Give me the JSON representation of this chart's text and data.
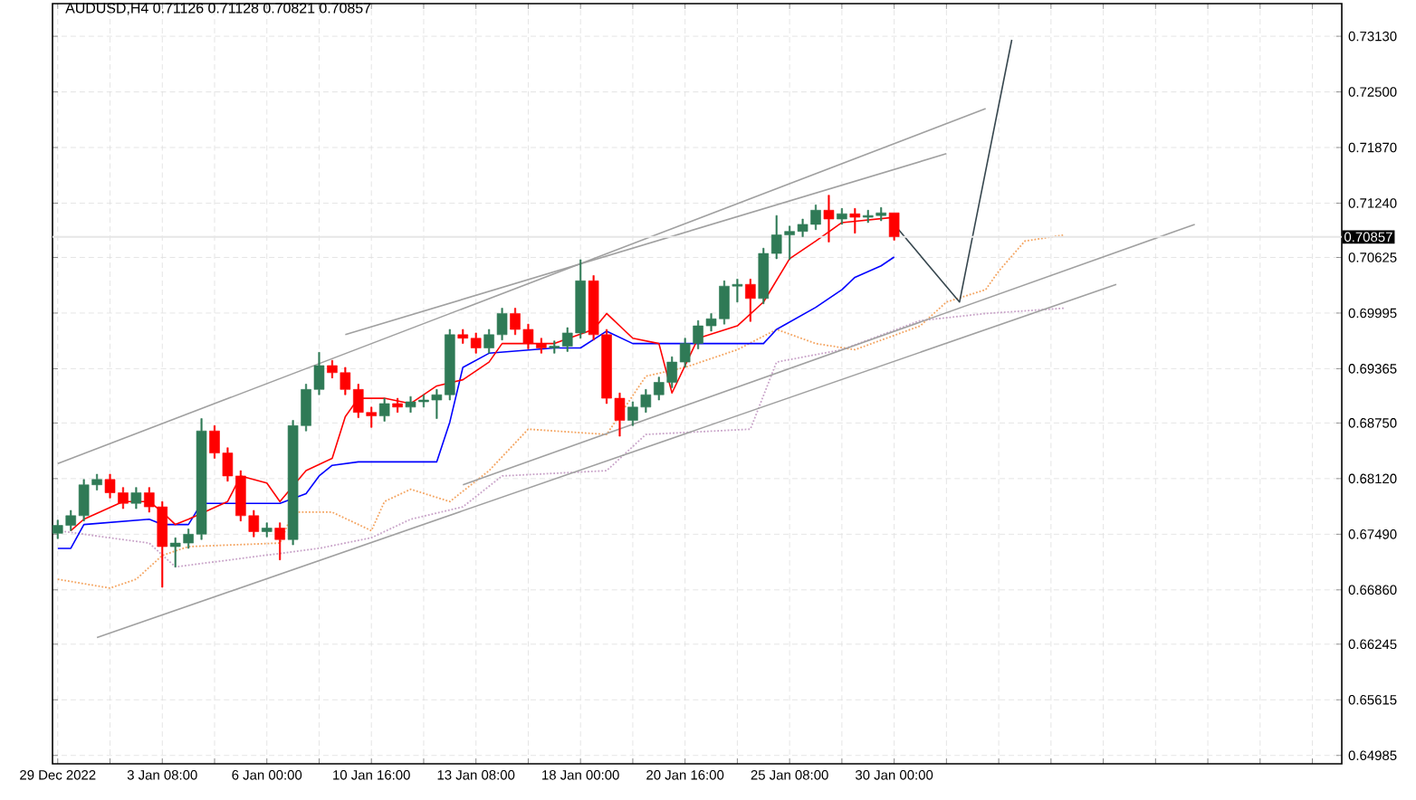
{
  "chart_data": {
    "type": "candlestick",
    "title": "AUDUSD,H4  0.71126 0.71128 0.70821 0.70857",
    "categories": [
      "29 Dec 2022",
      null,
      null,
      null,
      null,
      null,
      null,
      null,
      "3 Jan 08:00",
      null,
      null,
      null,
      null,
      null,
      null,
      null,
      "6 Jan 00:00",
      null,
      null,
      null,
      null,
      null,
      null,
      null,
      "10 Jan 16:00",
      null,
      null,
      null,
      null,
      null,
      null,
      null,
      "13 Jan 08:00",
      null,
      null,
      null,
      null,
      null,
      null,
      null,
      "18 Jan 00:00",
      null,
      null,
      null,
      null,
      null,
      null,
      null,
      "20 Jan 16:00",
      null,
      null,
      null,
      null,
      null,
      null,
      null,
      "25 Jan 08:00",
      null,
      null,
      null,
      null,
      null,
      null,
      null,
      "30 Jan 00:00",
      null,
      null,
      null,
      null,
      null,
      null,
      null,
      null,
      null,
      null,
      null,
      null,
      null,
      null,
      null,
      null,
      null,
      null,
      null,
      null,
      null,
      null,
      null,
      null,
      null,
      null,
      null,
      null,
      null,
      null,
      null,
      null,
      null,
      null
    ],
    "ohlc": [
      [
        0.675,
        0.6765,
        0.6744,
        0.6759
      ],
      [
        0.6759,
        0.6776,
        0.6753,
        0.677
      ],
      [
        0.677,
        0.6811,
        0.6764,
        0.6805
      ],
      [
        0.6805,
        0.6817,
        0.6799,
        0.6811
      ],
      [
        0.6811,
        0.6817,
        0.679,
        0.6796
      ],
      [
        0.6796,
        0.6802,
        0.6778,
        0.6784
      ],
      [
        0.6784,
        0.6802,
        0.6778,
        0.6796
      ],
      [
        0.6796,
        0.6802,
        0.6774,
        0.678
      ],
      [
        0.678,
        0.6786,
        0.6689,
        0.6735
      ],
      [
        0.6735,
        0.6745,
        0.6712,
        0.6739
      ],
      [
        0.6739,
        0.6755,
        0.6733,
        0.6749
      ],
      [
        0.6749,
        0.688,
        0.6743,
        0.6866
      ],
      [
        0.6866,
        0.6872,
        0.6835,
        0.6841
      ],
      [
        0.6841,
        0.6847,
        0.6809,
        0.6815
      ],
      [
        0.6815,
        0.6821,
        0.6764,
        0.677
      ],
      [
        0.677,
        0.6776,
        0.6746,
        0.6752
      ],
      [
        0.6752,
        0.6762,
        0.6746,
        0.6756
      ],
      [
        0.6756,
        0.6762,
        0.672,
        0.6743
      ],
      [
        0.6743,
        0.6878,
        0.6737,
        0.6872
      ],
      [
        0.6872,
        0.6919,
        0.6866,
        0.6913
      ],
      [
        0.6913,
        0.6955,
        0.6907,
        0.694
      ],
      [
        0.694,
        0.6946,
        0.6926,
        0.6932
      ],
      [
        0.6932,
        0.6938,
        0.6907,
        0.6913
      ],
      [
        0.6913,
        0.6919,
        0.6881,
        0.6887
      ],
      [
        0.6887,
        0.6893,
        0.687,
        0.6883
      ],
      [
        0.6883,
        0.6903,
        0.6877,
        0.6897
      ],
      [
        0.6897,
        0.6903,
        0.6887,
        0.6893
      ],
      [
        0.6893,
        0.6905,
        0.6887,
        0.6899
      ],
      [
        0.6899,
        0.6907,
        0.6893,
        0.6901
      ],
      [
        0.6901,
        0.6913,
        0.688,
        0.6907
      ],
      [
        0.6907,
        0.6981,
        0.6901,
        0.6975
      ],
      [
        0.6975,
        0.6981,
        0.6965,
        0.6971
      ],
      [
        0.6971,
        0.6977,
        0.6954,
        0.696
      ],
      [
        0.696,
        0.6981,
        0.6954,
        0.6975
      ],
      [
        0.6975,
        0.7005,
        0.6969,
        0.6999
      ],
      [
        0.6999,
        0.7005,
        0.6975,
        0.6981
      ],
      [
        0.6981,
        0.6987,
        0.6959,
        0.6965
      ],
      [
        0.6965,
        0.6971,
        0.6954,
        0.696
      ],
      [
        0.696,
        0.6968,
        0.6954,
        0.6962
      ],
      [
        0.6962,
        0.6983,
        0.6956,
        0.6977
      ],
      [
        0.6977,
        0.706,
        0.6971,
        0.7036
      ],
      [
        0.7036,
        0.7042,
        0.6969,
        0.6975
      ],
      [
        0.6975,
        0.6981,
        0.6897,
        0.6903
      ],
      [
        0.6903,
        0.6909,
        0.686,
        0.6878
      ],
      [
        0.6878,
        0.6899,
        0.6872,
        0.6893
      ],
      [
        0.6893,
        0.6913,
        0.6887,
        0.6907
      ],
      [
        0.6907,
        0.6927,
        0.6901,
        0.6921
      ],
      [
        0.6921,
        0.695,
        0.6915,
        0.6944
      ],
      [
        0.6944,
        0.6971,
        0.6938,
        0.6965
      ],
      [
        0.6965,
        0.6991,
        0.6959,
        0.6985
      ],
      [
        0.6985,
        0.6999,
        0.6979,
        0.6993
      ],
      [
        0.6993,
        0.7036,
        0.6987,
        0.703
      ],
      [
        0.703,
        0.7038,
        0.7012,
        0.7032
      ],
      [
        0.7032,
        0.7038,
        0.699,
        0.7016
      ],
      [
        0.7016,
        0.7073,
        0.701,
        0.7067
      ],
      [
        0.7067,
        0.711,
        0.7061,
        0.7088
      ],
      [
        0.7088,
        0.7098,
        0.706,
        0.7092
      ],
      [
        0.7092,
        0.7106,
        0.7086,
        0.71
      ],
      [
        0.71,
        0.7122,
        0.7094,
        0.7116
      ],
      [
        0.7116,
        0.7133,
        0.708,
        0.7106
      ],
      [
        0.7106,
        0.7118,
        0.71,
        0.7112
      ],
      [
        0.7112,
        0.7118,
        0.709,
        0.7108
      ],
      [
        0.7108,
        0.7116,
        0.7102,
        0.711
      ],
      [
        0.711,
        0.7119,
        0.7104,
        0.7113
      ],
      [
        0.7113,
        0.7113,
        0.7082,
        0.7086
      ],
      null,
      null,
      null,
      null,
      null,
      null,
      null,
      null,
      null,
      null,
      null,
      null,
      null,
      null,
      null,
      null,
      null,
      null,
      null,
      null,
      null,
      null,
      null,
      null,
      null,
      null,
      null,
      null,
      null,
      null,
      null,
      null,
      null,
      null
    ],
    "colors": [
      "#2f7a56",
      "#2f7a56",
      "#2f7a56",
      "#2f7a56",
      "#ff0000",
      "#ff0000",
      "#2f7a56",
      "#ff0000",
      "#ff0000",
      "#2f7a56",
      "#2f7a56",
      "#2f7a56",
      "#ff0000",
      "#ff0000",
      "#ff0000",
      "#ff0000",
      "#2f7a56",
      "#ff0000",
      "#2f7a56",
      "#2f7a56",
      "#2f7a56",
      "#ff0000",
      "#ff0000",
      "#ff0000",
      "#ff0000",
      "#2f7a56",
      "#ff0000",
      "#2f7a56",
      "#2f7a56",
      "#2f7a56",
      "#2f7a56",
      "#ff0000",
      "#ff0000",
      "#2f7a56",
      "#2f7a56",
      "#ff0000",
      "#ff0000",
      "#ff0000",
      "#2f7a56",
      "#2f7a56",
      "#2f7a56",
      "#ff0000",
      "#ff0000",
      "#ff0000",
      "#2f7a56",
      "#2f7a56",
      "#2f7a56",
      "#2f7a56",
      "#2f7a56",
      "#2f7a56",
      "#2f7a56",
      "#2f7a56",
      "#2f7a56",
      "#ff0000",
      "#2f7a56",
      "#2f7a56",
      "#2f7a56",
      "#2f7a56",
      "#2f7a56",
      "#ff0000",
      "#2f7a56",
      "#ff0000",
      "#2f7a56",
      "#2f7a56",
      "#ff0000",
      null,
      null,
      null,
      null,
      null,
      null,
      null,
      null,
      null,
      null,
      null,
      null,
      null,
      null,
      null,
      null,
      null,
      null,
      null,
      null,
      null,
      null,
      null,
      null,
      null,
      null,
      null,
      null,
      null,
      null,
      null,
      null,
      null,
      null
    ],
    "series": [
      {
        "type": "line",
        "color": "#f4a460",
        "line_style": "dotted",
        "values": [
          0.6698,
          null,
          null,
          null,
          0.6688,
          null,
          0.6698,
          null,
          0.6725,
          null,
          0.6735,
          null,
          null,
          null,
          null,
          null,
          null,
          0.6739,
          0.6774,
          null,
          null,
          0.6774,
          null,
          null,
          0.6753,
          0.6786,
          null,
          0.68,
          null,
          null,
          0.6786,
          null,
          null,
          0.6821,
          null,
          null,
          0.6868,
          null,
          null,
          null,
          null,
          null,
          0.6862,
          null,
          null,
          0.6928,
          null,
          null,
          0.6938,
          null,
          null,
          null,
          0.6958,
          null,
          null,
          0.6981,
          null,
          null,
          0.6965,
          null,
          null,
          0.6958,
          null,
          null,
          null,
          null,
          0.6985,
          null,
          0.7012,
          null,
          null,
          0.7026,
          0.7047,
          null,
          0.7081,
          null,
          null,
          0.7088,
          null,
          null,
          null,
          null,
          null,
          null,
          null,
          null,
          null,
          null,
          null,
          null,
          null,
          null,
          null,
          null,
          null,
          null,
          null,
          null,
          null
        ]
      },
      {
        "type": "line",
        "color": "#c8a2c8",
        "line_style": "dotted",
        "values": [
          0.6753,
          null,
          null,
          null,
          0.6745,
          null,
          null,
          0.6739,
          null,
          0.6712,
          null,
          null,
          null,
          null,
          null,
          null,
          null,
          null,
          null,
          null,
          0.6733,
          null,
          null,
          null,
          0.6745,
          null,
          null,
          0.6766,
          null,
          null,
          null,
          0.678,
          null,
          null,
          0.6815,
          null,
          null,
          null,
          null,
          null,
          null,
          null,
          0.6821,
          null,
          null,
          0.6862,
          null,
          null,
          null,
          null,
          null,
          null,
          null,
          0.6868,
          null,
          0.6944,
          null,
          null,
          null,
          null,
          0.6958,
          null,
          null,
          null,
          null,
          null,
          0.6991,
          null,
          null,
          null,
          null,
          0.6999,
          null,
          null,
          null,
          null,
          null,
          0.7005,
          null,
          null,
          null,
          null,
          null,
          null,
          null,
          null,
          null,
          null,
          null,
          null,
          null,
          null,
          null,
          null,
          null,
          null,
          null,
          null,
          null
        ]
      },
      {
        "type": "line",
        "color": "#0000ff",
        "values": [
          0.6733,
          0.6733,
          0.676,
          null,
          null,
          null,
          null,
          0.6766,
          0.676,
          null,
          0.676,
          0.6784,
          null,
          null,
          null,
          null,
          null,
          0.6784,
          null,
          0.6795,
          0.6815,
          0.6827,
          null,
          0.6831,
          null,
          null,
          null,
          null,
          null,
          0.6831,
          0.6876,
          0.6938,
          null,
          0.6954,
          null,
          null,
          null,
          null,
          0.696,
          null,
          0.696,
          null,
          0.6979,
          null,
          0.6965,
          null,
          null,
          null,
          null,
          null,
          null,
          null,
          null,
          null,
          0.6965,
          0.6981,
          null,
          null,
          0.7006,
          null,
          0.7026,
          0.704,
          null,
          0.7053,
          0.7063,
          null,
          null,
          null,
          null,
          null,
          null,
          null,
          null,
          null,
          null,
          null,
          null,
          null,
          null,
          null,
          null,
          null,
          null,
          null,
          null,
          null,
          null,
          null,
          null,
          null,
          null,
          null,
          null,
          null,
          null,
          null,
          null,
          null,
          null
        ]
      },
      {
        "type": "line",
        "color": "#ff0000",
        "values": [
          null,
          0.6753,
          0.6766,
          null,
          null,
          0.6786,
          null,
          0.6786,
          0.6774,
          0.676,
          0.6766,
          null,
          null,
          0.6786,
          0.6815,
          null,
          0.6807,
          0.6786,
          null,
          0.6821,
          null,
          0.6835,
          0.6882,
          0.6903,
          null,
          0.6903,
          null,
          0.6897,
          null,
          0.6917,
          null,
          0.6924,
          null,
          0.6944,
          0.6965,
          null,
          null,
          null,
          0.6965,
          null,
          null,
          0.6981,
          0.6999,
          null,
          0.6971,
          null,
          0.6965,
          0.6909,
          null,
          0.6971,
          null,
          null,
          0.6985,
          null,
          0.7012,
          null,
          0.7061,
          null,
          0.7081,
          null,
          0.7102,
          null,
          null,
          null,
          0.7108,
          null,
          null,
          null,
          null,
          null,
          null,
          null,
          null,
          null,
          null,
          null,
          null,
          null,
          null,
          null,
          null,
          null,
          null,
          null,
          null,
          null,
          null,
          null,
          null,
          null,
          null,
          null,
          null,
          null,
          null,
          null,
          null,
          null,
          null
        ]
      },
      {
        "type": "line",
        "color": "#a0a0a0",
        "values": [
          0.6829,
          null,
          null,
          null,
          null,
          null,
          null,
          null,
          null,
          null,
          null,
          null,
          null,
          null,
          null,
          null,
          null,
          null,
          null,
          null,
          null,
          null,
          null,
          null,
          null,
          null,
          null,
          null,
          null,
          null,
          null,
          null,
          null,
          null,
          null,
          null,
          null,
          null,
          null,
          null,
          null,
          null,
          null,
          null,
          null,
          null,
          null,
          null,
          null,
          null,
          null,
          null,
          null,
          null,
          null,
          null,
          null,
          null,
          null,
          null,
          null,
          null,
          null,
          null,
          null,
          null,
          null,
          null,
          null,
          null,
          null,
          0.7231,
          null,
          null,
          null,
          null,
          null,
          null,
          null,
          null,
          null,
          null,
          null,
          null,
          null,
          null,
          null,
          null,
          null,
          null,
          null,
          null,
          null,
          null,
          null,
          null,
          null,
          null,
          null
        ]
      },
      {
        "type": "line",
        "color": "#a0a0a0",
        "values": [
          null,
          null,
          null,
          null,
          null,
          null,
          null,
          null,
          null,
          null,
          null,
          null,
          null,
          null,
          null,
          null,
          null,
          null,
          null,
          null,
          null,
          null,
          0.6975,
          null,
          null,
          null,
          null,
          null,
          null,
          null,
          null,
          null,
          null,
          null,
          null,
          null,
          null,
          null,
          null,
          null,
          null,
          null,
          null,
          null,
          null,
          null,
          null,
          null,
          null,
          null,
          null,
          null,
          null,
          null,
          null,
          null,
          null,
          null,
          null,
          null,
          null,
          null,
          null,
          null,
          null,
          null,
          null,
          null,
          0.718,
          null,
          null,
          null,
          null,
          null,
          null,
          null,
          null,
          null,
          null,
          null,
          null,
          null,
          null,
          null,
          null,
          null,
          null,
          null,
          null,
          null,
          null,
          null,
          null,
          null,
          null,
          null,
          null,
          null,
          null
        ]
      },
      {
        "type": "line",
        "color": "#a0a0a0",
        "values": [
          null,
          null,
          null,
          0.6632,
          null,
          null,
          null,
          null,
          null,
          null,
          null,
          null,
          null,
          null,
          null,
          null,
          null,
          null,
          null,
          null,
          null,
          null,
          null,
          null,
          null,
          null,
          null,
          null,
          null,
          null,
          null,
          null,
          null,
          null,
          null,
          null,
          null,
          null,
          null,
          null,
          null,
          null,
          null,
          null,
          null,
          null,
          null,
          null,
          null,
          null,
          null,
          null,
          null,
          null,
          null,
          null,
          null,
          null,
          null,
          null,
          null,
          null,
          null,
          null,
          null,
          null,
          null,
          null,
          null,
          null,
          null,
          null,
          null,
          null,
          null,
          null,
          null,
          null,
          null,
          null,
          null,
          0.7032,
          null,
          null,
          null,
          null,
          null,
          null,
          null,
          null,
          null,
          null,
          null,
          null,
          null,
          null,
          null,
          null,
          null
        ]
      },
      {
        "type": "line",
        "color": "#a0a0a0",
        "values": [
          null,
          null,
          null,
          null,
          null,
          null,
          null,
          null,
          null,
          null,
          null,
          null,
          null,
          null,
          null,
          null,
          null,
          null,
          null,
          null,
          null,
          null,
          null,
          null,
          null,
          null,
          null,
          null,
          null,
          null,
          null,
          0.6805,
          null,
          null,
          null,
          null,
          null,
          null,
          null,
          null,
          null,
          null,
          null,
          null,
          null,
          null,
          null,
          null,
          null,
          null,
          null,
          null,
          null,
          null,
          null,
          null,
          null,
          null,
          null,
          null,
          null,
          null,
          null,
          null,
          null,
          null,
          null,
          null,
          null,
          null,
          null,
          null,
          null,
          null,
          null,
          null,
          null,
          null,
          null,
          null,
          null,
          null,
          null,
          null,
          null,
          null,
          null,
          0.71,
          null,
          null,
          null,
          null,
          null,
          null,
          null,
          null,
          null,
          null,
          null
        ]
      },
      {
        "type": "line",
        "color": "#37474f",
        "values": [
          null,
          null,
          null,
          null,
          null,
          null,
          null,
          null,
          null,
          null,
          null,
          null,
          null,
          null,
          null,
          null,
          null,
          null,
          null,
          null,
          null,
          null,
          null,
          null,
          null,
          null,
          null,
          null,
          null,
          null,
          null,
          null,
          null,
          null,
          null,
          null,
          null,
          null,
          null,
          null,
          null,
          null,
          null,
          null,
          null,
          null,
          null,
          null,
          null,
          null,
          null,
          null,
          null,
          null,
          null,
          null,
          null,
          null,
          null,
          null,
          null,
          null,
          null,
          null,
          0.71,
          null,
          null,
          null,
          null,
          0.7012,
          null,
          null,
          null,
          0.7309,
          null,
          null,
          null,
          null,
          null,
          null,
          null,
          null,
          null,
          null,
          null,
          null,
          null,
          null,
          null,
          null,
          null,
          null,
          null,
          null,
          null,
          null,
          null,
          null,
          null
        ]
      }
    ],
    "ylim": [
      0.6489,
      0.735
    ],
    "yticks": [
      {
        "value": 0.64985,
        "label": "0.64985"
      },
      {
        "value": 0.65615,
        "label": "0.65615"
      },
      {
        "value": 0.66245,
        "label": "0.66245"
      },
      {
        "value": 0.6686,
        "label": "0.66860"
      },
      {
        "value": 0.6749,
        "label": "0.67490"
      },
      {
        "value": 0.6812,
        "label": "0.68120"
      },
      {
        "value": 0.6875,
        "label": "0.68750"
      },
      {
        "value": 0.69365,
        "label": "0.69365"
      },
      {
        "value": 0.69995,
        "label": "0.69995"
      },
      {
        "value": 0.70625,
        "label": "0.70625"
      },
      {
        "value": 0.7124,
        "label": "0.71240"
      },
      {
        "value": 0.7187,
        "label": "0.71870"
      },
      {
        "value": 0.725,
        "label": "0.72500"
      },
      {
        "value": 0.7313,
        "label": "0.73130"
      }
    ],
    "grid": true,
    "ref_lines": [
      {
        "axis": "y",
        "value": 0.70857,
        "label": "0.70857",
        "color": "#e6e6e6"
      }
    ]
  }
}
